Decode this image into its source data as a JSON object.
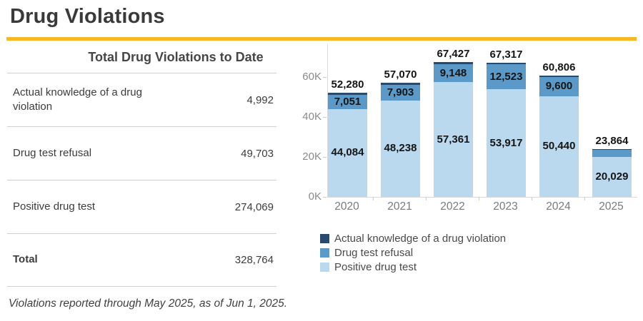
{
  "page": {
    "title": "Drug Violations",
    "accent_color": "#f9b625",
    "footnote": "Violations reported through May 2025, as of Jun 1, 2025."
  },
  "summary_table": {
    "title": "Total Drug Violations to Date",
    "rows": [
      {
        "label": "Actual knowledge of a drug violation",
        "value": "4,992",
        "bold": false
      },
      {
        "label": "Drug test refusal",
        "value": "49,703",
        "bold": false
      },
      {
        "label": "Positive drug test",
        "value": "274,069",
        "bold": false
      },
      {
        "label": "Total",
        "value": "328,764",
        "bold": true
      }
    ]
  },
  "chart_data": {
    "type": "bar",
    "subtype": "stacked",
    "title": "",
    "xlabel": "",
    "ylabel": "",
    "categories": [
      "2020",
      "2021",
      "2022",
      "2023",
      "2024",
      "2025"
    ],
    "series": [
      {
        "name": "Positive drug test",
        "color": "#bad8ee",
        "values": [
          44084,
          48238,
          57361,
          53917,
          50440,
          20029
        ],
        "labels": [
          "44,084",
          "48,238",
          "57,361",
          "53,917",
          "50,440",
          "20,029"
        ]
      },
      {
        "name": "Drug test refusal",
        "color": "#5b9ac8",
        "values": [
          7051,
          7903,
          9148,
          12523,
          9600,
          3478
        ],
        "labels": [
          "7,051",
          "7,903",
          "9,148",
          "12,523",
          "9,600",
          ""
        ]
      },
      {
        "name": "Actual knowledge of a drug violation",
        "color": "#294a6d",
        "values": [
          1145,
          929,
          918,
          877,
          766,
          357
        ],
        "labels": [
          "",
          "",
          "",
          "",
          "",
          ""
        ]
      }
    ],
    "totals": [
      52280,
      57070,
      67427,
      67317,
      60806,
      23864
    ],
    "total_labels": [
      "52,280",
      "57,070",
      "67,427",
      "67,317",
      "60,806",
      "23,864"
    ],
    "y_ticks": [
      {
        "value": 0,
        "label": "0K"
      },
      {
        "value": 20000,
        "label": "20K"
      },
      {
        "value": 40000,
        "label": "40K"
      },
      {
        "value": 60000,
        "label": "60K"
      }
    ],
    "ylim": [
      0,
      75000
    ],
    "grid": false,
    "legend_position": "bottom-left",
    "legend_order": [
      "Actual knowledge of a drug violation",
      "Drug test refusal",
      "Positive drug test"
    ],
    "axis_color": "#d9d9d9",
    "tick_label_color": "#8a8a8a"
  }
}
